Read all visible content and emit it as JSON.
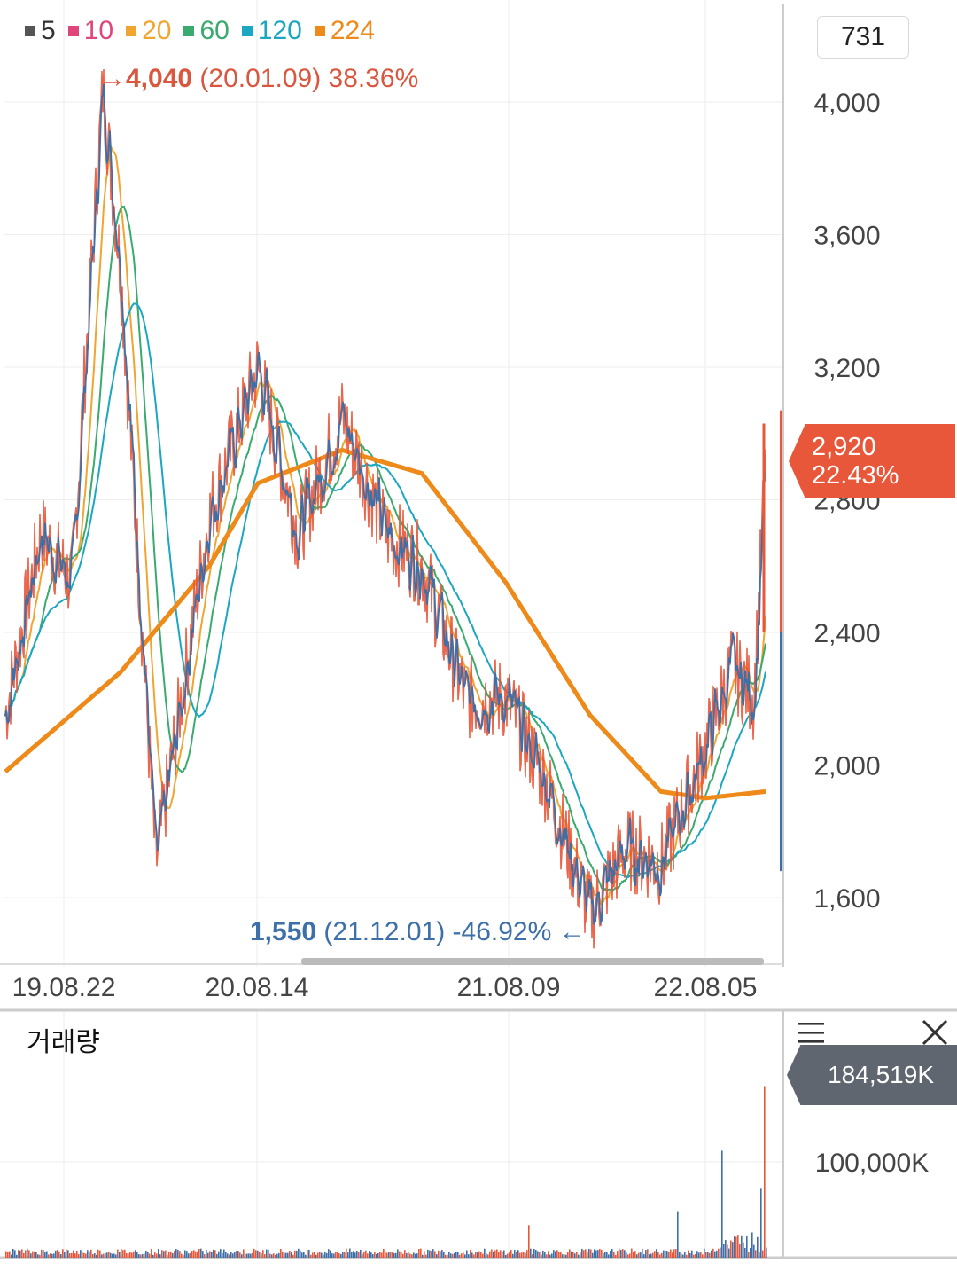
{
  "legend": [
    {
      "label": "5",
      "color": "#555555"
    },
    {
      "label": "10",
      "color": "#e0457b"
    },
    {
      "label": "20",
      "color": "#f0a530"
    },
    {
      "label": "60",
      "color": "#3aaa6e"
    },
    {
      "label": "120",
      "color": "#1ba6c2"
    },
    {
      "label": "224",
      "color": "#ee8a1a"
    }
  ],
  "count_box": "731",
  "high_annotation": {
    "arrow": "→",
    "value": "4,040",
    "detail": "(20.01.09) 38.36%"
  },
  "low_annotation": {
    "value": "1,550",
    "detail": "(21.12.01) -46.92%",
    "arrow": "←"
  },
  "current_price": {
    "price": "2,920",
    "change": "22.43%"
  },
  "volume_panel": {
    "title": "거래량",
    "current": "184,519K",
    "menu_icon": "hamburger-menu-icon",
    "close_icon": "close-icon"
  },
  "colors": {
    "up": "#e8573a",
    "down": "#3d6fa8"
  },
  "chart_data": {
    "type": "line",
    "price_axis": {
      "ticks": [
        4000,
        3600,
        3200,
        2800,
        2400,
        2000,
        1600
      ],
      "tick_labels": [
        "4,000",
        "3,600",
        "3,200",
        "2,800",
        "2,400",
        "2,000",
        "1,600"
      ]
    },
    "x_tick_labels": [
      "19.08.22",
      "20.08.14",
      "21.08.09",
      "22.08.05"
    ],
    "volume_axis": {
      "ticks": [
        100000
      ],
      "tick_labels": [
        "100,000K"
      ]
    },
    "price_series_approx": {
      "x": [
        "19.08.22",
        "19.10",
        "19.12",
        "20.01.09",
        "20.02",
        "20.03",
        "20.05",
        "20.08.14",
        "20.10",
        "20.12",
        "21.02",
        "21.04",
        "21.06",
        "21.08.09",
        "21.10",
        "21.12.01",
        "22.02",
        "22.04",
        "22.06",
        "22.08.05",
        "22.09",
        "22.10"
      ],
      "y": [
        2150,
        2700,
        2550,
        4040,
        3500,
        1700,
        2750,
        3200,
        2700,
        3050,
        2700,
        2600,
        2200,
        2200,
        1950,
        1550,
        1750,
        1700,
        2050,
        2300,
        2200,
        2920
      ]
    },
    "ma224_approx": {
      "x": [
        "19.08.22",
        "19.12",
        "20.03",
        "20.08.14",
        "20.12",
        "21.04",
        "21.08.09",
        "21.12.01",
        "22.04",
        "22.08.05",
        "22.10"
      ],
      "y": [
        1980,
        2280,
        2600,
        2850,
        2950,
        2880,
        2550,
        2150,
        1920,
        1900,
        1920
      ]
    },
    "volume_approx": {
      "x": [
        "19.08",
        "20.01",
        "20.08",
        "21.02",
        "21.12",
        "22.06",
        "22.08",
        "22.10"
      ],
      "y": [
        5000,
        8000,
        12000,
        10000,
        35000,
        15000,
        65000,
        184519
      ]
    }
  }
}
